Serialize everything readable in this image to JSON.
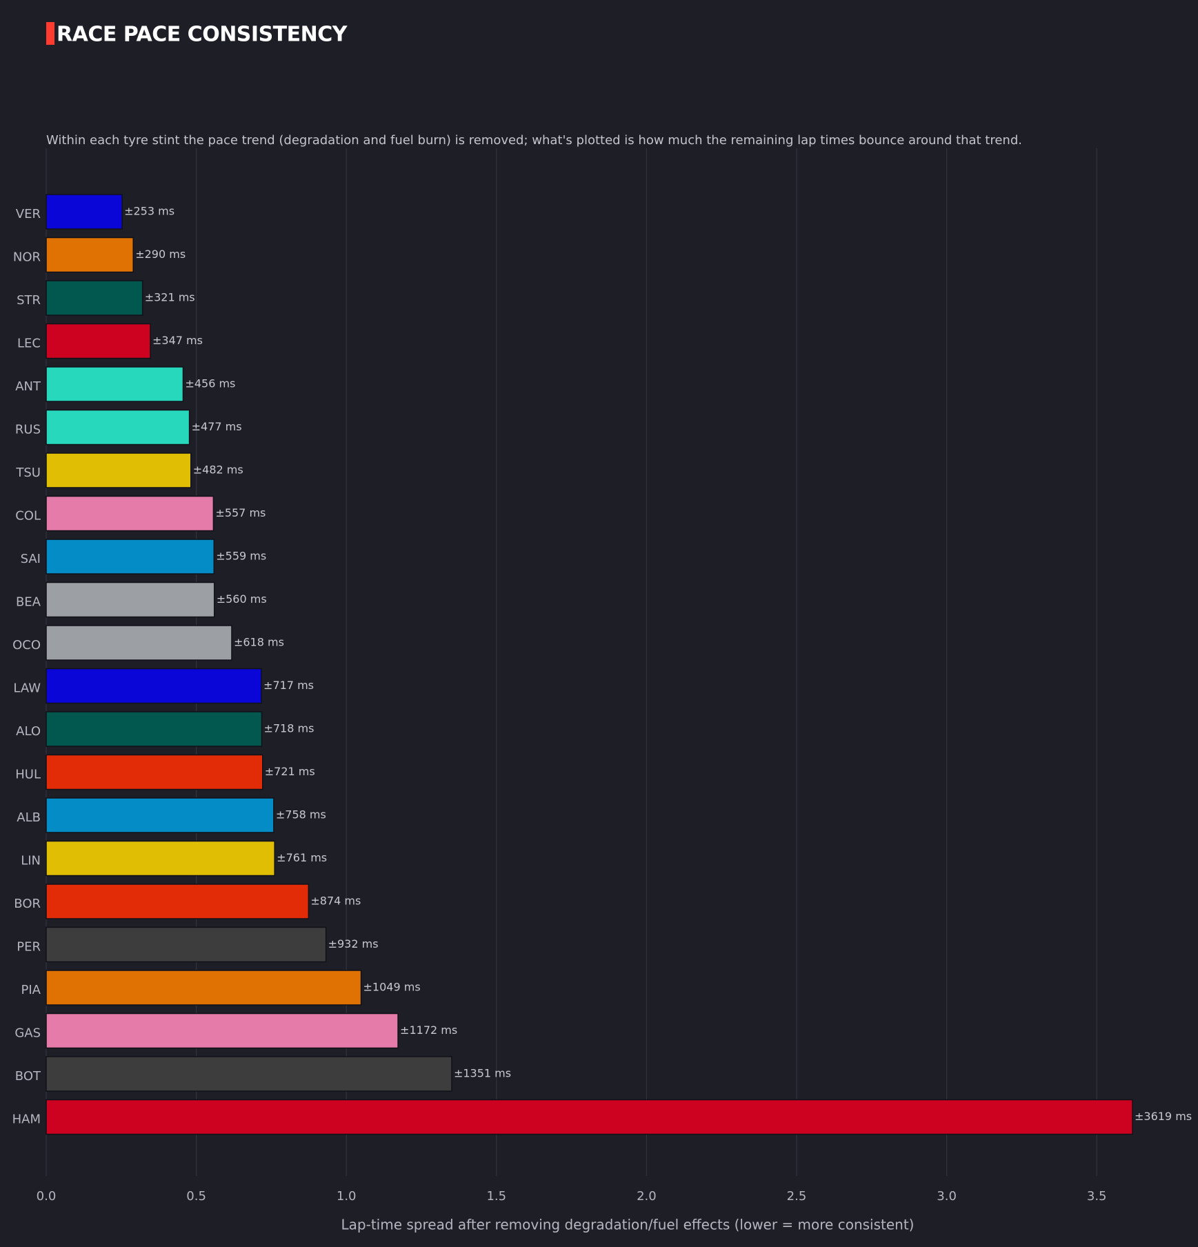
{
  "chart_data": {
    "type": "bar",
    "orientation": "horizontal",
    "title": "RACE PACE CONSISTENCY",
    "subtitle": "Within each tyre stint the pace trend (degradation and fuel burn) is removed; what's plotted is how much the remaining lap times bounce around that trend.",
    "xlabel": "Lap-time spread after removing degradation/fuel effects  (lower = more consistent)",
    "ylabel": "",
    "xlim": [
      0,
      3.8
    ],
    "xticks": [
      "0.0",
      "0.5",
      "1.0",
      "1.5",
      "2.0",
      "2.5",
      "3.0",
      "3.5"
    ],
    "grid": "vertical",
    "legend": "none",
    "accent_color": "#ff3b30",
    "background_color": "#1e1e27",
    "categories": [
      "VER",
      "NOR",
      "STR",
      "LEC",
      "ANT",
      "RUS",
      "TSU",
      "COL",
      "SAI",
      "BEA",
      "OCO",
      "LAW",
      "ALO",
      "HUL",
      "ALB",
      "LIN",
      "BOR",
      "PER",
      "PIA",
      "GAS",
      "BOT",
      "HAM"
    ],
    "values": [
      0.253,
      0.29,
      0.321,
      0.347,
      0.456,
      0.477,
      0.482,
      0.557,
      0.559,
      0.56,
      0.618,
      0.717,
      0.718,
      0.721,
      0.758,
      0.761,
      0.874,
      0.932,
      1.049,
      1.172,
      1.351,
      3.619
    ],
    "data_labels": [
      "±253 ms",
      "±290 ms",
      "±321 ms",
      "±347 ms",
      "±456 ms",
      "±477 ms",
      "±482 ms",
      "±557 ms",
      "±559 ms",
      "±560 ms",
      "±618 ms",
      "±717 ms",
      "±718 ms",
      "±721 ms",
      "±758 ms",
      "±761 ms",
      "±874 ms",
      "±932 ms",
      "±1049 ms",
      "±1172 ms",
      "±1351 ms",
      "±3619 ms"
    ],
    "colors": [
      "#0a06d8",
      "#e07204",
      "#02574f",
      "#cc0220",
      "#27d8bd",
      "#27d8bd",
      "#dfbe03",
      "#e57ba9",
      "#038cc6",
      "#9c9fa4",
      "#9c9fa4",
      "#0a06d8",
      "#02574f",
      "#e22b07",
      "#038cc6",
      "#dfbe03",
      "#e22b07",
      "#3d3d3d",
      "#e07204",
      "#e57ba9",
      "#3d3d3d",
      "#cc0220"
    ]
  }
}
